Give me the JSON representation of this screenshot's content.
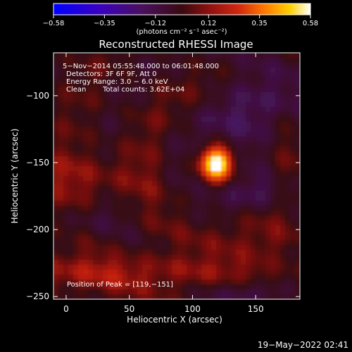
{
  "chart_data": {
    "type": "heatmap",
    "title": "Reconstructed RHESSI Image",
    "xlabel": "Heliocentric X (arcsec)",
    "ylabel": "Heliocentric Y (arcsec)",
    "xlim": [
      -10,
      185
    ],
    "ylim": [
      -252,
      -68
    ],
    "xticks": [
      0,
      50,
      100,
      150
    ],
    "yticks": [
      -100,
      -150,
      -200,
      -250
    ],
    "x_tick_labels": [
      "0",
      "50",
      "100",
      "150"
    ],
    "y_tick_labels": [
      "−100",
      "−150",
      "−200",
      "−250"
    ],
    "colorbar": {
      "min": -0.58,
      "max": 0.58,
      "ticks": [
        -0.58,
        -0.35,
        -0.12,
        0.12,
        0.35,
        0.58
      ],
      "tick_labels": [
        "−0.58",
        "−0.35",
        "−0.12",
        "0.12",
        "0.35",
        "0.58"
      ],
      "units_label": "(photons cm⁻² s⁻¹ asec⁻²)",
      "colormap": [
        "#0000ff",
        "#6a00a0",
        "#3a1035",
        "#7a1418",
        "#c22a10",
        "#ff7a00",
        "#ffd000",
        "#ffffff"
      ]
    },
    "peak": {
      "x": 119,
      "y": -151,
      "value": 0.58
    },
    "annotations": {
      "time_range": "5−Nov−2014 05:55:48.000 to 06:01:48.000",
      "detectors": "Detectors: 3F 6F 9F, Att 0",
      "energy_range": "Energy Range: 3.0 − 6.0 keV",
      "method": "Clean",
      "total_counts": "Total counts: 3.62E+04",
      "peak_position": "Position of Peak = [119,−151]"
    }
  },
  "footer": {
    "timestamp": "19−May−2022 02:41"
  }
}
